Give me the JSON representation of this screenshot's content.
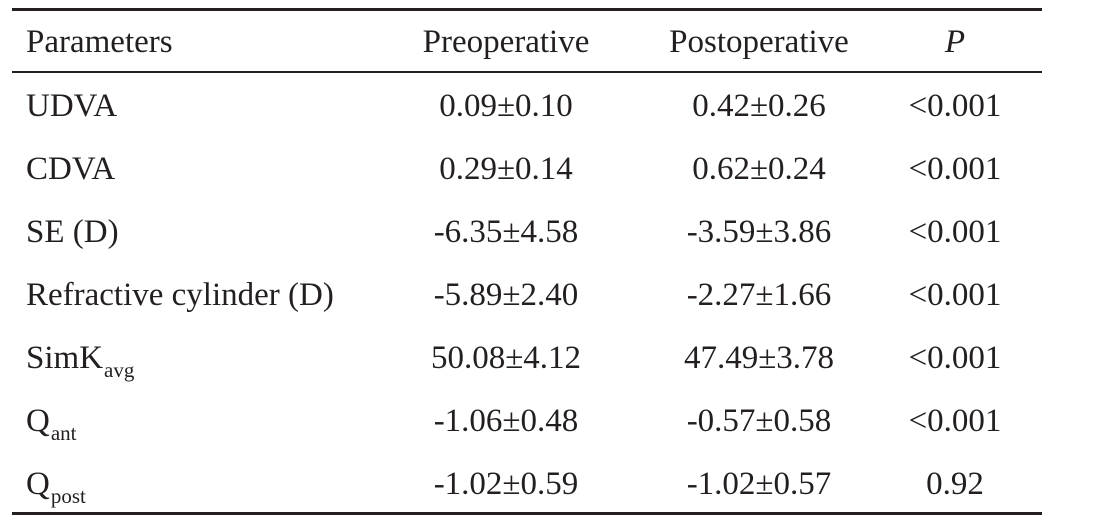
{
  "table": {
    "headers": {
      "parameters": "Parameters",
      "preoperative": "Preoperative",
      "postoperative": "Postoperative",
      "p": "P"
    },
    "rows": [
      {
        "param": "UDVA",
        "param_sub": "",
        "pre": "0.09±0.10",
        "post": "0.42±0.26",
        "p": "<0.001"
      },
      {
        "param": "CDVA",
        "param_sub": "",
        "pre": "0.29±0.14",
        "post": "0.62±0.24",
        "p": "<0.001"
      },
      {
        "param": "SE (D)",
        "param_sub": "",
        "pre": "-6.35±4.58",
        "post": "-3.59±3.86",
        "p": "<0.001"
      },
      {
        "param": "Refractive cylinder (D)",
        "param_sub": "",
        "pre": "-5.89±2.40",
        "post": "-2.27±1.66",
        "p": "<0.001"
      },
      {
        "param": "SimK",
        "param_sub": "avg",
        "pre": "50.08±4.12",
        "post": "47.49±3.78",
        "p": "<0.001"
      },
      {
        "param": "Q",
        "param_sub": "ant",
        "pre": "-1.06±0.48",
        "post": "-0.57±0.58",
        "p": "<0.001"
      },
      {
        "param": "Q",
        "param_sub": "post",
        "pre": "-1.02±0.59",
        "post": "-1.02±0.57",
        "p": "0.92"
      }
    ]
  }
}
